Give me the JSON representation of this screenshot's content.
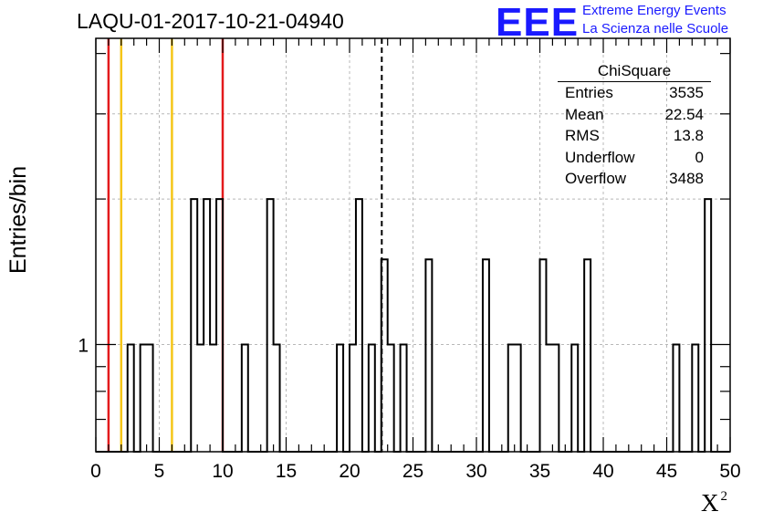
{
  "chart_data": {
    "type": "bar",
    "title": "LAQU-01-2017-10-21-04940",
    "xlabel": "X",
    "xlabel_sup": "2",
    "ylabel": "Entries/bin",
    "xlim": [
      0,
      50
    ],
    "ylim": [
      0.6,
      4.3
    ],
    "yscale": "log",
    "grid": true,
    "x_ticks": [
      "0",
      "5",
      "10",
      "15",
      "20",
      "25",
      "30",
      "35",
      "40",
      "45",
      "50"
    ],
    "y_ticks": [
      "1"
    ],
    "bin_width": 0.5,
    "bins": [
      {
        "x": 2.5,
        "y": 1
      },
      {
        "x": 3.5,
        "y": 1
      },
      {
        "x": 4.0,
        "y": 1
      },
      {
        "x": 7.5,
        "y": 2
      },
      {
        "x": 8.0,
        "y": 1
      },
      {
        "x": 8.5,
        "y": 2
      },
      {
        "x": 9.0,
        "y": 1
      },
      {
        "x": 9.5,
        "y": 2
      },
      {
        "x": 11.5,
        "y": 1
      },
      {
        "x": 13.5,
        "y": 2
      },
      {
        "x": 14.0,
        "y": 1
      },
      {
        "x": 19.0,
        "y": 1
      },
      {
        "x": 20.0,
        "y": 1
      },
      {
        "x": 20.5,
        "y": 2
      },
      {
        "x": 21.5,
        "y": 1
      },
      {
        "x": 22.5,
        "y": 1.5
      },
      {
        "x": 23.0,
        "y": 1
      },
      {
        "x": 24.0,
        "y": 1
      },
      {
        "x": 26.0,
        "y": 1.5
      },
      {
        "x": 30.5,
        "y": 1.5
      },
      {
        "x": 32.5,
        "y": 1
      },
      {
        "x": 33.0,
        "y": 1
      },
      {
        "x": 35.0,
        "y": 1.5
      },
      {
        "x": 35.5,
        "y": 1
      },
      {
        "x": 36.0,
        "y": 1
      },
      {
        "x": 37.5,
        "y": 1
      },
      {
        "x": 38.5,
        "y": 1.5
      },
      {
        "x": 45.5,
        "y": 1
      },
      {
        "x": 47.0,
        "y": 1
      },
      {
        "x": 48.0,
        "y": 2
      }
    ],
    "reference_lines": [
      {
        "x": 1,
        "color": "#e31a1c",
        "style": "solid"
      },
      {
        "x": 2,
        "color": "#f5c518",
        "style": "solid"
      },
      {
        "x": 6,
        "color": "#f5c518",
        "style": "solid"
      },
      {
        "x": 10,
        "color": "#e31a1c",
        "style": "solid"
      },
      {
        "x": 22.54,
        "color": "#000000",
        "style": "dashed"
      }
    ]
  },
  "stats": {
    "name": "ChiSquare",
    "rows": [
      {
        "label": "Entries",
        "value": "3535"
      },
      {
        "label": "Mean",
        "value": "22.54"
      },
      {
        "label": "RMS",
        "value": "13.8"
      },
      {
        "label": "Underflow",
        "value": "0"
      },
      {
        "label": "Overflow",
        "value": "3488"
      }
    ]
  },
  "logo": {
    "mark": "EEE",
    "line1": "Extreme Energy Events",
    "line2": "La Scienza nelle Scuole",
    "color": "#1a1aff"
  }
}
